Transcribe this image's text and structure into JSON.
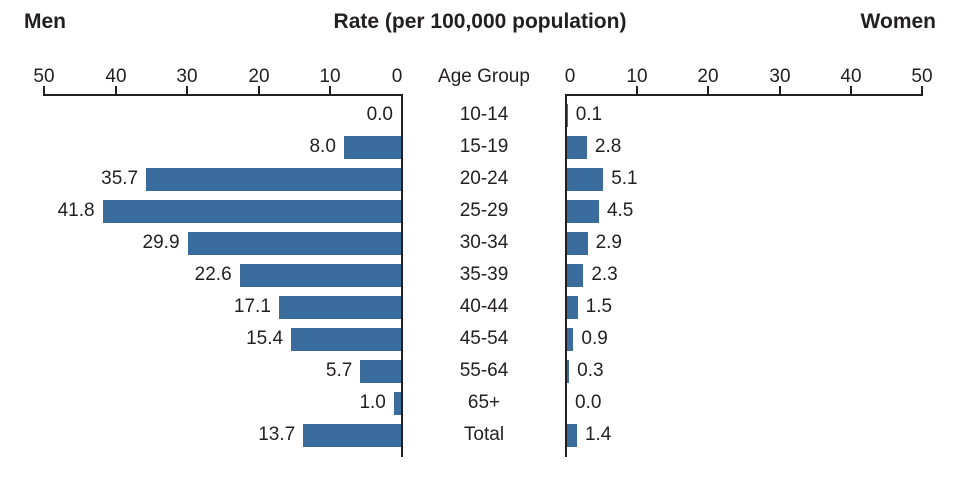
{
  "header": {
    "left_label": "Men",
    "title": "Rate (per 100,000 population)",
    "right_label": "Women"
  },
  "axis": {
    "center_label": "Age Group",
    "max": 50,
    "left_ticks": [
      "50",
      "40",
      "30",
      "20",
      "10",
      "0"
    ],
    "right_ticks": [
      "0",
      "10",
      "20",
      "30",
      "40",
      "50"
    ]
  },
  "colors": {
    "bar": "#3a6c9e",
    "axis": "#231f20",
    "text": "#231f20"
  },
  "chart_data": {
    "type": "bar",
    "title": "Rate (per 100,000 population)",
    "orientation": "horizontal-back-to-back",
    "categories": [
      "10-14",
      "15-19",
      "20-24",
      "25-29",
      "30-34",
      "35-39",
      "40-44",
      "45-54",
      "55-64",
      "65+",
      "Total"
    ],
    "series": [
      {
        "name": "Men",
        "side": "left",
        "values": [
          0.0,
          8.0,
          35.7,
          41.8,
          29.9,
          22.6,
          17.1,
          15.4,
          5.7,
          1.0,
          13.7
        ]
      },
      {
        "name": "Women",
        "side": "right",
        "values": [
          0.1,
          2.8,
          5.1,
          4.5,
          2.9,
          2.3,
          1.5,
          0.9,
          0.3,
          0.0,
          1.4
        ]
      }
    ],
    "xlim": [
      0,
      50
    ],
    "grid": false,
    "rows": [
      {
        "age": "10-14",
        "men": "0.0",
        "women": "0.1"
      },
      {
        "age": "15-19",
        "men": "8.0",
        "women": "2.8"
      },
      {
        "age": "20-24",
        "men": "35.7",
        "women": "5.1"
      },
      {
        "age": "25-29",
        "men": "41.8",
        "women": "4.5"
      },
      {
        "age": "30-34",
        "men": "29.9",
        "women": "2.9"
      },
      {
        "age": "35-39",
        "men": "22.6",
        "women": "2.3"
      },
      {
        "age": "40-44",
        "men": "17.1",
        "women": "1.5"
      },
      {
        "age": "45-54",
        "men": "15.4",
        "women": "0.9"
      },
      {
        "age": "55-64",
        "men": "5.7",
        "women": "0.3"
      },
      {
        "age": "65+",
        "men": "1.0",
        "women": "0.0"
      },
      {
        "age": "Total",
        "men": "13.7",
        "women": "1.4"
      }
    ]
  }
}
